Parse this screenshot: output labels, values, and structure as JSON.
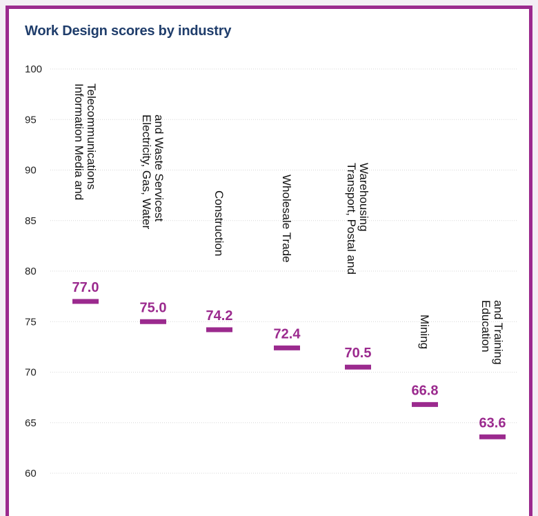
{
  "chart_data": {
    "type": "scatter",
    "title": "Work Design scores by industry",
    "xlabel": "",
    "ylabel": "",
    "ylim": [
      60,
      100
    ],
    "yticks": [
      60,
      65,
      70,
      75,
      80,
      85,
      90,
      95,
      100
    ],
    "grid": true,
    "legend": "none",
    "categories": [
      [
        "Information Media and",
        "Telecommunications"
      ],
      [
        "Electricity, Gas, Water",
        "and Waste Servicest"
      ],
      [
        "Construction"
      ],
      [
        "Wholesale Trade"
      ],
      [
        "Transport, Postal and",
        "Warehousing"
      ],
      [
        "Mining"
      ],
      [
        "Education",
        "and Training"
      ]
    ],
    "values": [
      77.0,
      75.0,
      74.2,
      72.4,
      70.5,
      66.8,
      63.6
    ],
    "value_labels": [
      "77.0",
      "75.0",
      "74.2",
      "72.4",
      "70.5",
      "66.8",
      "63.6"
    ]
  },
  "colors": {
    "accent": "#9b2a8e",
    "title": "#1f3d6b",
    "grid": "#d6d6d6",
    "background": "#ffffff"
  }
}
